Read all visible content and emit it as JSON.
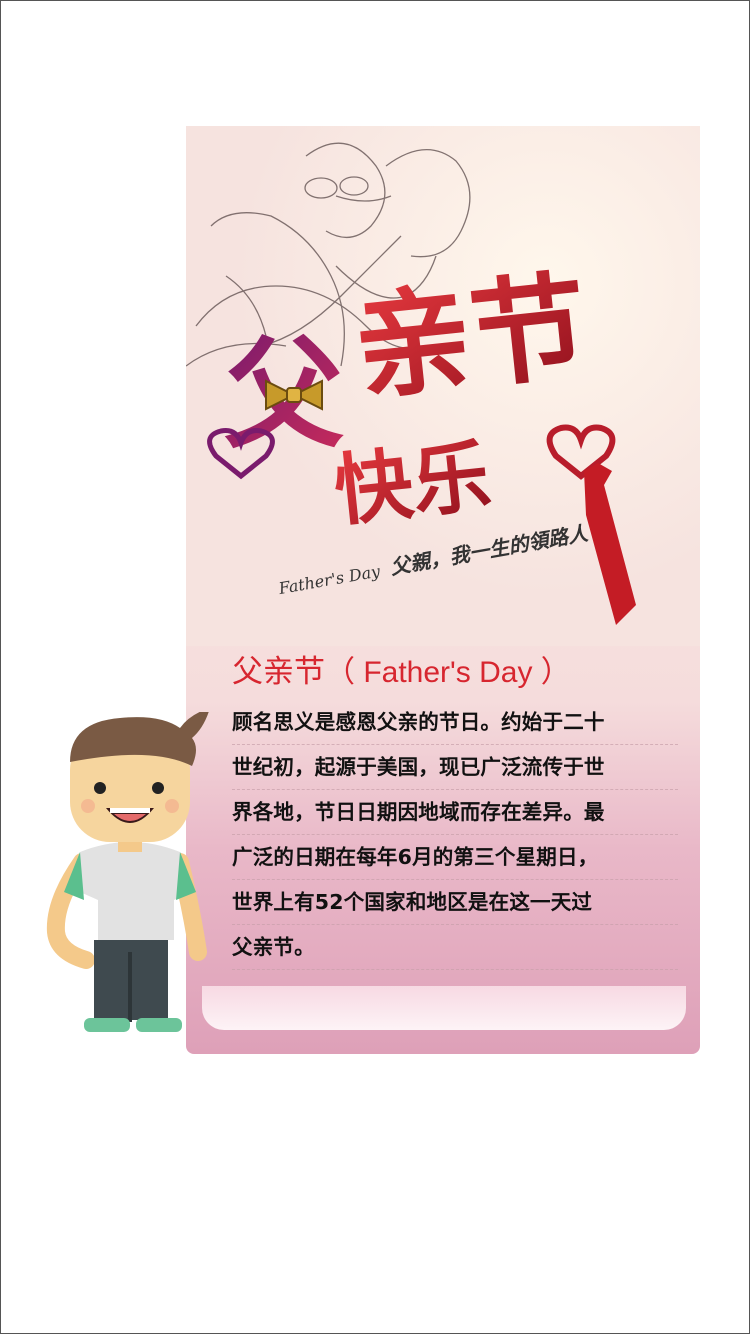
{
  "banner": {
    "title_main": "亲节",
    "title_first_char": "父",
    "title_sub": "快乐",
    "tagline_en": "Father's Day",
    "tagline_cn": "父親，我一生的領路人"
  },
  "article": {
    "heading_cn": "父亲节",
    "heading_en": "（ Father's Day ）",
    "lines": [
      "顾名思义是感恩父亲的节日。约始于二十",
      "世纪初，起源于美国，现已广泛流传于世",
      "界各地，节日日期因地域而存在差异。最",
      "广泛的日期在每年6月的第三个星期日，",
      "世界上有52个国家和地区是在这一天过",
      "父亲节。"
    ]
  },
  "colors": {
    "accent": "#d7262f",
    "card_bottom": "#dea0b8"
  }
}
